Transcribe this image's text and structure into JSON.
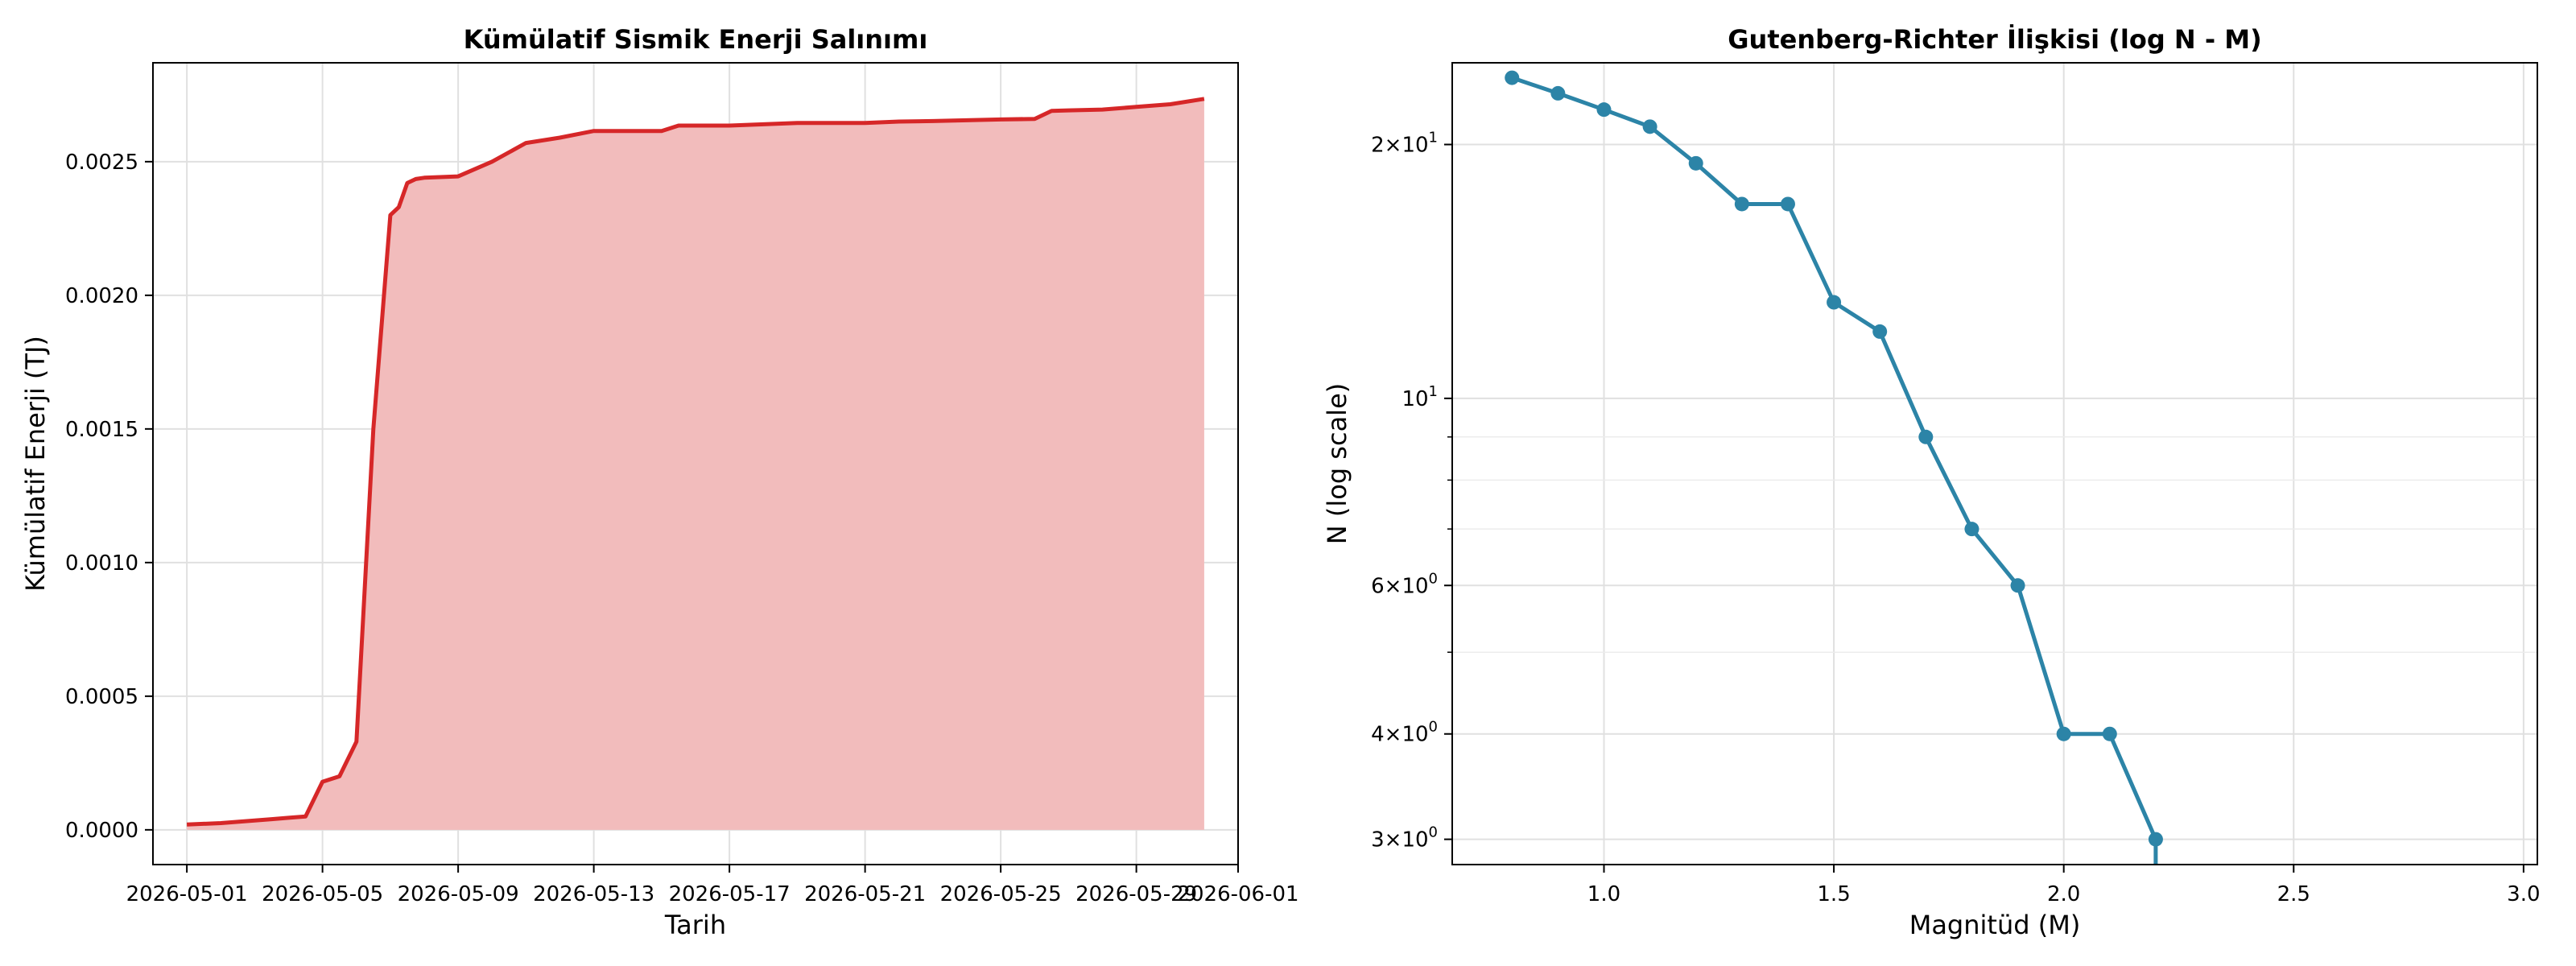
{
  "chart_data": [
    {
      "type": "area",
      "title": "Kümülatif Sismik Enerji Salınımı",
      "xlabel": "Tarih",
      "ylabel": "Kümülatif Enerji (TJ)",
      "x_ticks": [
        "2026-05-01",
        "2026-05-05",
        "2026-05-09",
        "2026-05-13",
        "2026-05-17",
        "2026-05-21",
        "2026-05-25",
        "2026-05-29",
        "2026-06-01"
      ],
      "y_ticks": [
        "0.0000",
        "0.0005",
        "0.0010",
        "0.0015",
        "0.0020",
        "0.0025"
      ],
      "xlim": [
        "2026-04-30",
        "2026-06-01"
      ],
      "ylim": [
        -0.00013,
        0.00287
      ],
      "grid": true,
      "line_color": "#d62728",
      "fill_color": "#f2bcbc",
      "series": [
        {
          "x": [
            "2026-05-01",
            "2026-05-02",
            "2026-05-02",
            "2026-05-03",
            "2026-05-03",
            "2026-05-04",
            "2026-05-04",
            "2026-05-05",
            "2026-05-05",
            "2026-05-06",
            "2026-05-06",
            "2026-05-07",
            "2026-05-07",
            "2026-05-07",
            "2026-05-07",
            "2026-05-08",
            "2026-05-09",
            "2026-05-10",
            "2026-05-11",
            "2026-05-12",
            "2026-05-13",
            "2026-05-14",
            "2026-05-15",
            "2026-05-15",
            "2026-05-16",
            "2026-05-17",
            "2026-05-18",
            "2026-05-19",
            "2026-05-20",
            "2026-05-21",
            "2026-05-22",
            "2026-05-23",
            "2026-05-24",
            "2026-05-25",
            "2026-05-26",
            "2026-05-26",
            "2026-05-27",
            "2026-05-28",
            "2026-05-29",
            "2026-05-30",
            "2026-05-31"
          ],
          "values": [
            2e-05,
            2.5e-05,
            3e-05,
            3.5e-05,
            4e-05,
            4.5e-05,
            5e-05,
            0.00018,
            0.0002,
            0.00033,
            0.0015,
            0.0023,
            0.00233,
            0.00242,
            0.002435,
            0.00244,
            0.002445,
            0.0025,
            0.00257,
            0.00259,
            0.002615,
            0.002615,
            0.002615,
            0.002635,
            0.002635,
            0.002635,
            0.00264,
            0.002645,
            0.002645,
            0.002645,
            0.00265,
            0.002652,
            0.002655,
            0.002658,
            0.00266,
            0.00269,
            0.002692,
            0.002695,
            0.002705,
            0.002715,
            0.002735
          ]
        }
      ]
    },
    {
      "type": "line",
      "title": "Gutenberg-Richter İlişkisi (log N - M)",
      "xlabel": "Magnitüd (M)",
      "ylabel": "N (log scale)",
      "y_scale": "log",
      "x_ticks": [
        "1.0",
        "1.5",
        "2.0",
        "2.5",
        "3.0"
      ],
      "y_ticks": [
        "3",
        "4",
        "6",
        "10",
        "20"
      ],
      "xlim": [
        0.67,
        3.03
      ],
      "ylim": [
        2.8,
        25
      ],
      "grid": true,
      "line_color": "#2c84a7",
      "series": [
        {
          "x": [
            0.8,
            0.9,
            1.0,
            1.1,
            1.2,
            1.3,
            1.4,
            1.5,
            1.6,
            1.7,
            1.8,
            1.9,
            2.0,
            2.1,
            2.2
          ],
          "values": [
            24,
            23,
            22,
            21,
            19,
            17,
            17,
            13,
            12,
            9,
            7,
            6,
            4,
            4,
            3
          ]
        }
      ]
    }
  ]
}
